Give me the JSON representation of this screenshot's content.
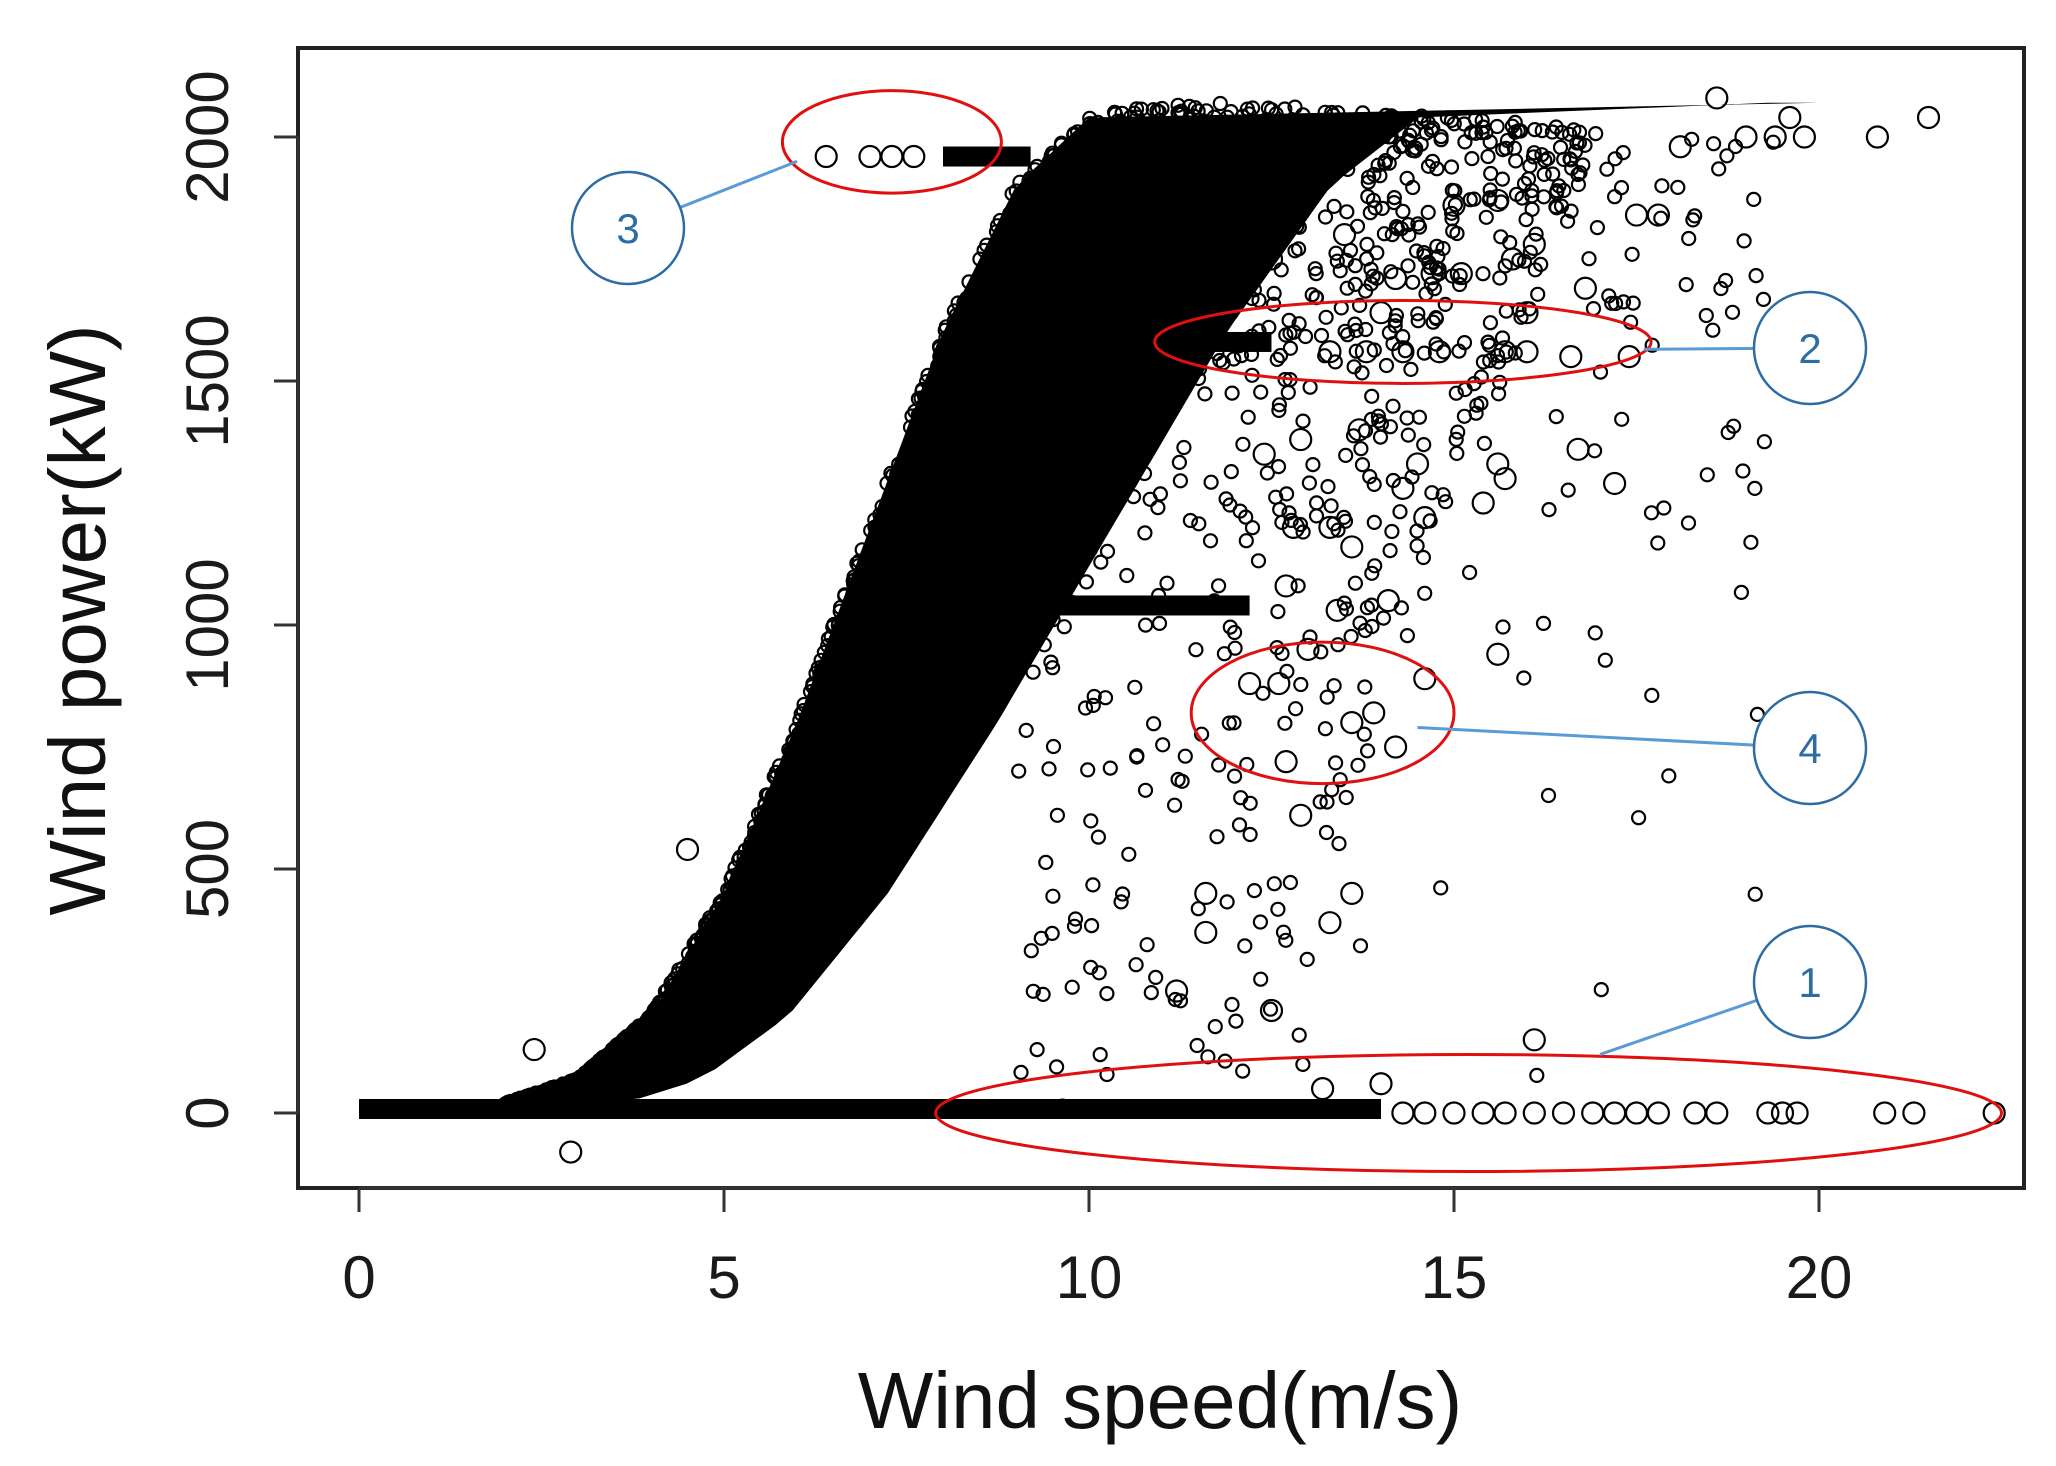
{
  "chart_data": {
    "type": "scatter",
    "xlabel": "Wind speed(m/s)",
    "ylabel": "Wind power(kW)",
    "xlim": [
      -0.5,
      23.5
    ],
    "ylim": [
      -150,
      2170
    ],
    "xticks": [
      0,
      5,
      10,
      15,
      20
    ],
    "yticks": [
      0,
      500,
      1000,
      1500,
      2000
    ],
    "marker": "open-circle",
    "grid": false,
    "legend": "none",
    "point_color": "#000000",
    "power_curve": {
      "description": "dense main band of points",
      "speed": [
        0,
        1,
        2,
        3,
        4,
        5,
        6,
        7,
        8,
        9,
        10,
        11,
        12,
        13,
        14,
        15,
        16,
        17,
        18,
        19
      ],
      "power": [
        0,
        0,
        20,
        70,
        200,
        450,
        800,
        1200,
        1600,
        1900,
        2040,
        2070,
        2070,
        2060,
        2050,
        2040,
        2030,
        2020,
        2010,
        2000
      ]
    },
    "points": [
      {
        "x": 2.4,
        "y": 130
      },
      {
        "x": 2.9,
        "y": -80
      },
      {
        "x": 4.5,
        "y": 540
      },
      {
        "x": 6.4,
        "y": 1960
      },
      {
        "x": 7.0,
        "y": 1960
      },
      {
        "x": 7.3,
        "y": 1960
      },
      {
        "x": 7.6,
        "y": 1960
      },
      {
        "x": 12.5,
        "y": 210
      },
      {
        "x": 13.3,
        "y": 390
      },
      {
        "x": 13.6,
        "y": 450
      },
      {
        "x": 12.9,
        "y": 610
      },
      {
        "x": 11.6,
        "y": 450
      },
      {
        "x": 11.6,
        "y": 370
      },
      {
        "x": 11.2,
        "y": 250
      },
      {
        "x": 14.2,
        "y": 750
      },
      {
        "x": 13.6,
        "y": 800
      },
      {
        "x": 13.9,
        "y": 820
      },
      {
        "x": 12.7,
        "y": 720
      },
      {
        "x": 12.6,
        "y": 880
      },
      {
        "x": 13.0,
        "y": 950
      },
      {
        "x": 14.6,
        "y": 890
      },
      {
        "x": 12.2,
        "y": 880
      },
      {
        "x": 15.6,
        "y": 940
      },
      {
        "x": 14.1,
        "y": 1050
      },
      {
        "x": 13.4,
        "y": 1030
      },
      {
        "x": 12.7,
        "y": 1080
      },
      {
        "x": 13.3,
        "y": 1200
      },
      {
        "x": 13.6,
        "y": 1160
      },
      {
        "x": 12.8,
        "y": 1200
      },
      {
        "x": 14.3,
        "y": 1280
      },
      {
        "x": 14.6,
        "y": 1220
      },
      {
        "x": 15.4,
        "y": 1250
      },
      {
        "x": 15.7,
        "y": 1300
      },
      {
        "x": 15.6,
        "y": 1330
      },
      {
        "x": 17.2,
        "y": 1290
      },
      {
        "x": 16.7,
        "y": 1360
      },
      {
        "x": 14.5,
        "y": 1330
      },
      {
        "x": 13.7,
        "y": 1400
      },
      {
        "x": 12.9,
        "y": 1380
      },
      {
        "x": 12.4,
        "y": 1350
      },
      {
        "x": 13.3,
        "y": 1560
      },
      {
        "x": 13.8,
        "y": 1560
      },
      {
        "x": 14.3,
        "y": 1560
      },
      {
        "x": 14.8,
        "y": 1560
      },
      {
        "x": 15.7,
        "y": 1560
      },
      {
        "x": 16.0,
        "y": 1560
      },
      {
        "x": 16.6,
        "y": 1550
      },
      {
        "x": 17.4,
        "y": 1550
      },
      {
        "x": 14.0,
        "y": 1640
      },
      {
        "x": 16.0,
        "y": 1640
      },
      {
        "x": 16.8,
        "y": 1690
      },
      {
        "x": 14.2,
        "y": 1710
      },
      {
        "x": 14.7,
        "y": 1720
      },
      {
        "x": 15.1,
        "y": 1720
      },
      {
        "x": 15.8,
        "y": 1750
      },
      {
        "x": 16.1,
        "y": 1780
      },
      {
        "x": 15.0,
        "y": 1860
      },
      {
        "x": 17.5,
        "y": 1840
      },
      {
        "x": 17.8,
        "y": 1840
      },
      {
        "x": 15.6,
        "y": 1870
      },
      {
        "x": 12.5,
        "y": 1750
      },
      {
        "x": 13.5,
        "y": 1800
      },
      {
        "x": 16.1,
        "y": 150
      },
      {
        "x": 13.2,
        "y": 50
      },
      {
        "x": 14.0,
        "y": 60
      },
      {
        "x": 14.3,
        "y": 0
      },
      {
        "x": 14.6,
        "y": 0
      },
      {
        "x": 15.0,
        "y": 0
      },
      {
        "x": 15.4,
        "y": 0
      },
      {
        "x": 15.7,
        "y": 0
      },
      {
        "x": 16.1,
        "y": 0
      },
      {
        "x": 16.5,
        "y": 0
      },
      {
        "x": 16.9,
        "y": 0
      },
      {
        "x": 17.2,
        "y": 0
      },
      {
        "x": 17.5,
        "y": 0
      },
      {
        "x": 17.8,
        "y": 0
      },
      {
        "x": 18.3,
        "y": 0
      },
      {
        "x": 18.6,
        "y": 0
      },
      {
        "x": 19.3,
        "y": 0
      },
      {
        "x": 19.5,
        "y": 0
      },
      {
        "x": 19.7,
        "y": 0
      },
      {
        "x": 20.9,
        "y": 0
      },
      {
        "x": 21.3,
        "y": 0
      },
      {
        "x": 22.4,
        "y": 0
      },
      {
        "x": 21.5,
        "y": 2040
      },
      {
        "x": 20.8,
        "y": 2000
      },
      {
        "x": 19.8,
        "y": 2000
      },
      {
        "x": 19.4,
        "y": 2000
      },
      {
        "x": 19.6,
        "y": 2040
      },
      {
        "x": 18.6,
        "y": 2080
      },
      {
        "x": 19.0,
        "y": 2000
      },
      {
        "x": 18.1,
        "y": 1980
      }
    ],
    "callouts": [
      {
        "label": "1",
        "ellipse": {
          "cx": 15.2,
          "cy": 0,
          "rx": 7.3,
          "ry": 120
        },
        "anchor": {
          "x": 17.0,
          "y": 120
        }
      },
      {
        "label": "2",
        "ellipse": {
          "cx": 14.3,
          "cy": 1580,
          "rx": 3.4,
          "ry": 85
        },
        "anchor": {
          "x": 17.6,
          "y": 1565
        }
      },
      {
        "label": "3",
        "ellipse": {
          "cx": 7.3,
          "cy": 1990,
          "rx": 1.5,
          "ry": 105
        },
        "anchor": {
          "x": 6.0,
          "y": 1950
        }
      },
      {
        "label": "4",
        "ellipse": {
          "cx": 13.2,
          "cy": 820,
          "rx": 1.8,
          "ry": 145
        },
        "anchor": {
          "x": 14.5,
          "y": 790
        }
      }
    ],
    "callout_color": "#e01010",
    "connector_color": "#5b9bd5",
    "badge_color": "#2e6da4"
  }
}
